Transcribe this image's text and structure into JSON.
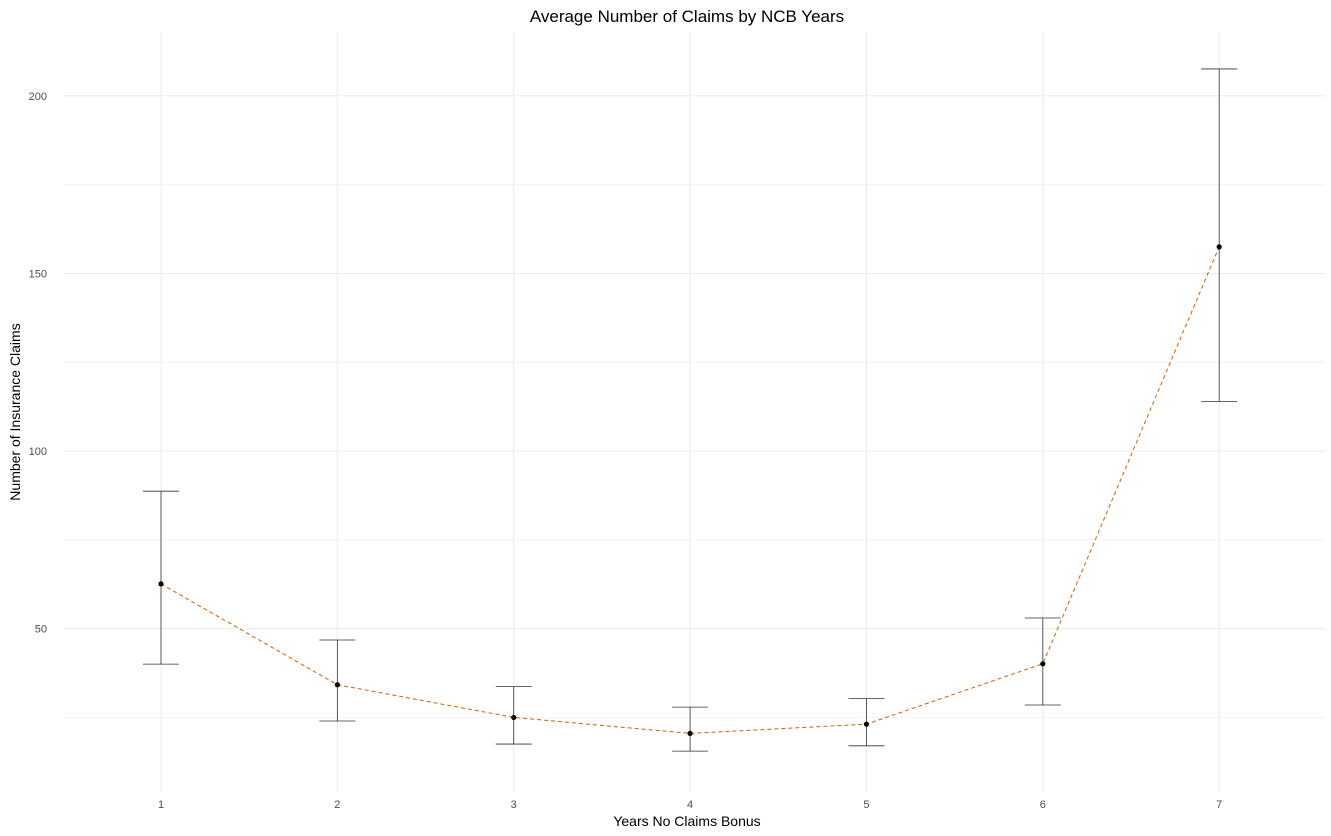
{
  "chart_data": {
    "type": "line",
    "title": "Average Number of Claims by NCB Years",
    "xlabel": "Years No Claims Bonus",
    "ylabel": "Number of Insurance Claims",
    "x": [
      1,
      2,
      3,
      4,
      5,
      6,
      7
    ],
    "series": [
      {
        "values": [
          62.6,
          34.2,
          25.0,
          20.5,
          23.1,
          40.1,
          157.5
        ],
        "lower": [
          40.0,
          24.0,
          17.5,
          15.5,
          17.0,
          28.5,
          114.0
        ],
        "upper": [
          88.7,
          46.8,
          33.7,
          27.9,
          30.3,
          53.0,
          207.6
        ]
      }
    ],
    "xlim": [
      0.45,
      7.6
    ],
    "ylim": [
      4,
      218
    ],
    "y_ticks": [
      50,
      100,
      150,
      200
    ],
    "x_ticks": [
      1,
      2,
      3,
      4,
      5,
      6,
      7
    ],
    "grid": true,
    "colors": {
      "trend": "#d95f02",
      "points": "#000000",
      "error_bars": "#333333"
    }
  }
}
